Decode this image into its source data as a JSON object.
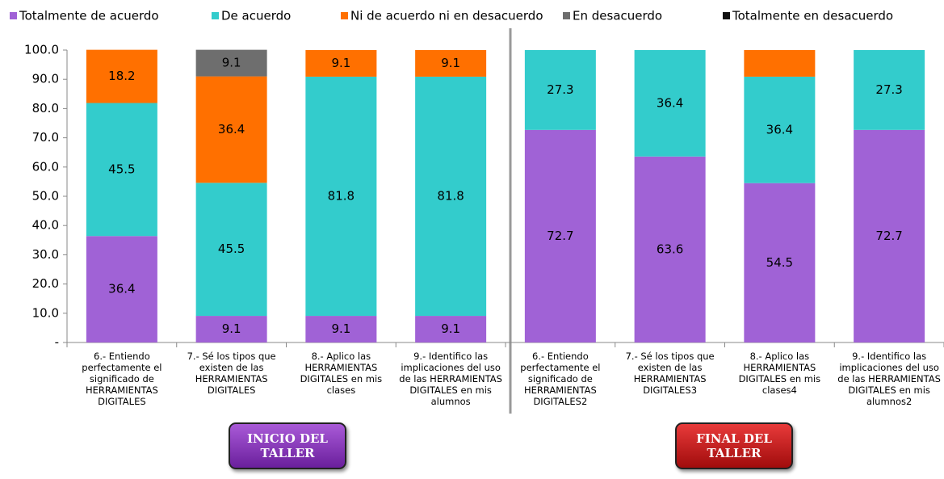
{
  "chart_data": {
    "type": "stacked_bar",
    "categories": [
      "6.- Entiendo perfectamente el significado de HERRAMIENTAS DIGITALES",
      "7.- Sé los tipos que existen de las HERRAMIENTAS DIGITALES",
      "8.- Aplico las HERRAMIENTAS DIGITALES en mis clases",
      "9.- Identifico las implicaciones del uso de las HERRAMIENTAS DIGITALES en mis alumnos",
      "6.- Entiendo perfectamente el significado de HERRAMIENTAS DIGITALES2",
      "7.- Sé los tipos que existen de las HERRAMIENTAS DIGITALES3",
      "8.- Aplico las HERRAMIENTAS DIGITALES en mis clases4",
      "9.- Identifico las implicaciones del uso de las HERRAMIENTAS DIGITALES en mis alumnos2"
    ],
    "series": [
      {
        "name": "Totalmente de acuerdo",
        "color": "#a062d6",
        "values": [
          36.4,
          9.1,
          9.1,
          9.1,
          72.7,
          63.6,
          54.5,
          72.7
        ],
        "value_labels": [
          "36.4",
          "9.1",
          "9.1",
          "9.1",
          "72.7",
          "63.6",
          "54.5",
          "72.7"
        ]
      },
      {
        "name": "De acuerdo",
        "color": "#33cccc",
        "values": [
          45.5,
          45.5,
          81.8,
          81.8,
          27.3,
          36.4,
          36.4,
          27.3
        ],
        "value_labels": [
          "45.5",
          "45.5",
          "81.8",
          "81.8",
          "27.3",
          "36.4",
          "36.4",
          "27.3"
        ]
      },
      {
        "name": "Ni de acuerdo ni en desacuerdo",
        "color": "#ff7000",
        "values": [
          18.2,
          36.4,
          9.1,
          9.1,
          0,
          0,
          9.1,
          0
        ],
        "value_labels": [
          "18.2",
          "36.4",
          "9.1",
          "9.1",
          null,
          null,
          null,
          null
        ]
      },
      {
        "name": "En desacuerdo",
        "color": "#6e6e6e",
        "values": [
          0,
          9.1,
          0,
          0,
          0,
          0,
          0,
          0
        ],
        "value_labels": [
          null,
          "9.1",
          null,
          null,
          null,
          null,
          null,
          null
        ]
      },
      {
        "name": "Totalmente en desacuerdo",
        "color": "#111111",
        "values": [
          0,
          0,
          0,
          0,
          0,
          0,
          0,
          0
        ],
        "value_labels": [
          null,
          null,
          null,
          null,
          null,
          null,
          null,
          null
        ]
      }
    ],
    "ylim": [
      0,
      100
    ],
    "yticks": [
      {
        "value": 0,
        "label": "-"
      },
      {
        "value": 10,
        "label": "10.0"
      },
      {
        "value": 20,
        "label": "20.0"
      },
      {
        "value": 30,
        "label": "30.0"
      },
      {
        "value": 40,
        "label": "40.0"
      },
      {
        "value": 50,
        "label": "50.0"
      },
      {
        "value": 60,
        "label": "60.0"
      },
      {
        "value": 70,
        "label": "70.0"
      },
      {
        "value": 80,
        "label": "80.0"
      },
      {
        "value": 90,
        "label": "90.0"
      },
      {
        "value": 100,
        "label": "100.0"
      }
    ],
    "grid": false,
    "legend": "top",
    "annotations": [
      "INICIO DEL TALLER",
      "FINAL DEL TALLER"
    ]
  }
}
